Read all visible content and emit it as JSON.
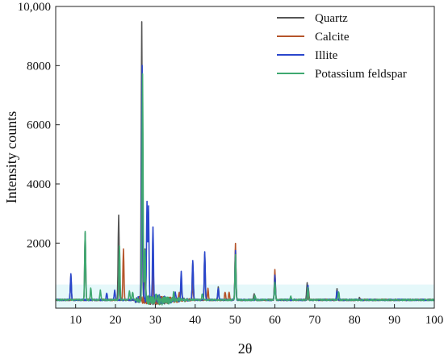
{
  "chart_data": {
    "type": "line",
    "xlabel": "2θ",
    "ylabel": "Intensity counts",
    "xlim": [
      5,
      100
    ],
    "ylim": [
      -200,
      10000
    ],
    "xticks": [
      10,
      20,
      30,
      40,
      50,
      60,
      70,
      80,
      90,
      100
    ],
    "yticks": [
      2000,
      4000,
      6000,
      8000
    ],
    "ytick_labels": [
      "2000",
      "4000",
      "6000",
      "8000",
      "10,000"
    ],
    "ytick_values": [
      2000,
      4000,
      6000,
      8000,
      10000
    ],
    "legend_position": "top-right",
    "baseline": 80,
    "series": [
      {
        "name": "Quartz",
        "color": "#555555",
        "peaks": [
          [
            8.8,
            900
          ],
          [
            12.4,
            2350
          ],
          [
            20.8,
            2950
          ],
          [
            26.6,
            9400
          ],
          [
            27.4,
            1750
          ],
          [
            36.5,
            650
          ],
          [
            39.4,
            1350
          ],
          [
            42.4,
            1650
          ],
          [
            45.8,
            500
          ],
          [
            50.1,
            1800
          ],
          [
            54.8,
            300
          ],
          [
            60.0,
            950
          ],
          [
            68.1,
            650
          ],
          [
            75.6,
            450
          ],
          [
            81.2,
            150
          ]
        ]
      },
      {
        "name": "Calcite",
        "color": "#b5542a",
        "peaks": [
          [
            22.0,
            1800
          ],
          [
            29.4,
            1100
          ],
          [
            36.0,
            300
          ],
          [
            39.4,
            600
          ],
          [
            43.2,
            450
          ],
          [
            47.5,
            350
          ],
          [
            48.5,
            350
          ],
          [
            50.1,
            2000
          ],
          [
            60.0,
            1100
          ],
          [
            68.4,
            450
          ]
        ]
      },
      {
        "name": "Illite",
        "color": "#2a46cc",
        "peaks": [
          [
            8.8,
            950
          ],
          [
            17.8,
            300
          ],
          [
            19.8,
            400
          ],
          [
            26.7,
            8100
          ],
          [
            27.9,
            3300
          ],
          [
            28.3,
            3100
          ],
          [
            29.4,
            2500
          ],
          [
            35.0,
            400
          ],
          [
            36.5,
            1000
          ],
          [
            39.4,
            1400
          ],
          [
            42.4,
            1700
          ],
          [
            45.8,
            450
          ],
          [
            50.1,
            1750
          ],
          [
            60.0,
            900
          ],
          [
            68.3,
            600
          ],
          [
            75.6,
            400
          ]
        ]
      },
      {
        "name": "Potassium feldspar",
        "color": "#3fa870",
        "peaks": [
          [
            12.4,
            2400
          ],
          [
            13.8,
            500
          ],
          [
            16.2,
            400
          ],
          [
            21.0,
            1900
          ],
          [
            23.5,
            400
          ],
          [
            24.3,
            350
          ],
          [
            26.8,
            7800
          ],
          [
            27.4,
            1700
          ],
          [
            30.2,
            400
          ],
          [
            34.6,
            300
          ],
          [
            41.8,
            300
          ],
          [
            50.1,
            1600
          ],
          [
            55.0,
            250
          ],
          [
            60.0,
            700
          ],
          [
            64.0,
            200
          ],
          [
            68.3,
            500
          ],
          [
            76.0,
            350
          ]
        ]
      }
    ]
  }
}
